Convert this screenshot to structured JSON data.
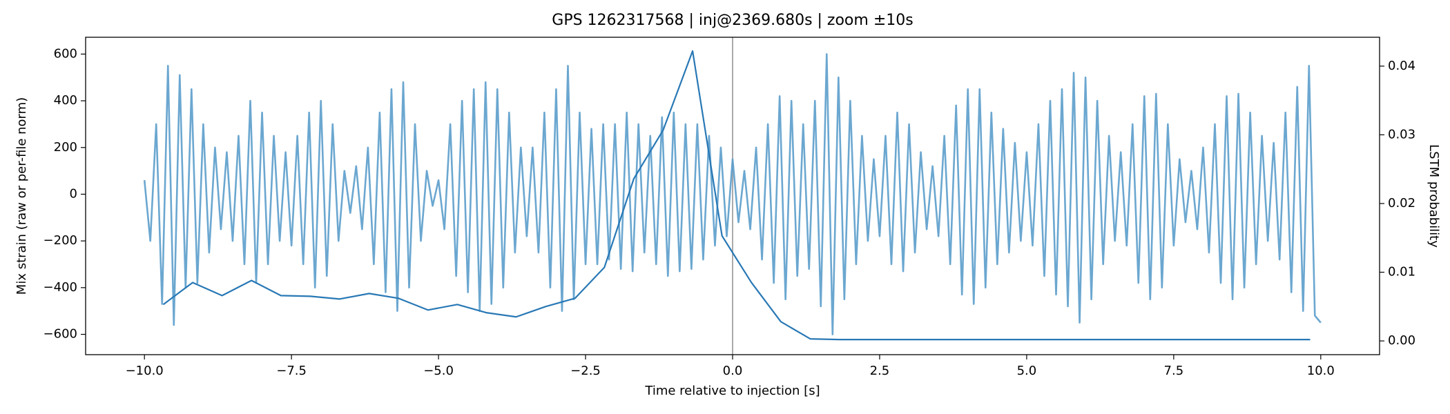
{
  "chart_data": {
    "type": "line",
    "title": "GPS 1262317568 | inj@2369.680s | zoom ±10s",
    "xlabel": "Time relative to injection [s]",
    "ylabel": "Mix strain (raw or per-file norm)",
    "y2label": "LSTM probability",
    "xlim": [
      -11,
      11
    ],
    "ylim": [
      -687,
      672
    ],
    "y2lim": [
      -0.002,
      0.0442
    ],
    "xticks": [
      {
        "value": -10,
        "label": "−10.0"
      },
      {
        "value": -7.5,
        "label": "−7.5"
      },
      {
        "value": -5,
        "label": "−5.0"
      },
      {
        "value": -2.5,
        "label": "−2.5"
      },
      {
        "value": 0,
        "label": "0.0"
      },
      2.5,
      {
        "value": 5,
        "label": "5.0"
      },
      7.5,
      {
        "value": 10,
        "label": "10.0"
      }
    ],
    "yticks": [
      {
        "value": -600,
        "label": "−600"
      },
      {
        "value": -400,
        "label": "−400"
      },
      {
        "value": -200,
        "label": "−200"
      },
      0,
      200,
      400,
      600
    ],
    "y2ticks": [
      {
        "value": 0,
        "label": "0.00"
      },
      0.01,
      0.02,
      0.03,
      0.04
    ],
    "vline_x": 0,
    "series": [
      {
        "name": "strain",
        "color": "#5b9dcb",
        "x": [
          -10,
          -9.9,
          -9.8,
          -9.7,
          -9.6,
          -9.5,
          -9.4,
          -9.3,
          -9.2,
          -9.1,
          -9,
          -8.9,
          -8.8,
          -8.7,
          -8.6,
          -8.5,
          -8.4,
          -8.3,
          -8.2,
          -8.1,
          -8,
          -7.9,
          -7.8,
          -7.7,
          -7.6,
          -7.5,
          -7.4,
          -7.3,
          -7.2,
          -7.1,
          -7,
          -6.9,
          -6.8,
          -6.7,
          -6.6,
          -6.5,
          -6.4,
          -6.3,
          -6.2,
          -6.1,
          -6,
          -5.9,
          -5.8,
          -5.7,
          -5.6,
          -5.5,
          -5.4,
          -5.3,
          -5.2,
          -5.1,
          -5,
          -4.9,
          -4.8,
          -4.7,
          -4.6,
          -4.5,
          -4.4,
          -4.3,
          -4.2,
          -4.1,
          -4,
          -3.9,
          -3.8,
          -3.7,
          -3.6,
          -3.5,
          -3.4,
          -3.3,
          -3.2,
          -3.1,
          -3,
          -2.9,
          -2.8,
          -2.7,
          -2.6,
          -2.5,
          -2.4,
          -2.3,
          -2.2,
          -2.1,
          -2,
          -1.9,
          -1.8,
          -1.7,
          -1.6,
          -1.5,
          -1.4,
          -1.3,
          -1.2,
          -1.1,
          -1,
          -0.9,
          -0.8,
          -0.7,
          -0.6,
          -0.5,
          -0.4,
          -0.3,
          -0.2,
          -0.1,
          0,
          0.1,
          0.2,
          0.3,
          0.4,
          0.5,
          0.6,
          0.7,
          0.8,
          0.9,
          1,
          1.1,
          1.2,
          1.3,
          1.4,
          1.5,
          1.6,
          1.7,
          1.8,
          1.9,
          2,
          2.1,
          2.2,
          2.3,
          2.4,
          2.5,
          2.6,
          2.7,
          2.8,
          2.9,
          3,
          3.1,
          3.2,
          3.3,
          3.4,
          3.5,
          3.6,
          3.7,
          3.8,
          3.9,
          4,
          4.1,
          4.2,
          4.3,
          4.4,
          4.5,
          4.6,
          4.7,
          4.8,
          4.9,
          5,
          5.1,
          5.2,
          5.3,
          5.4,
          5.5,
          5.6,
          5.7,
          5.8,
          5.9,
          6,
          6.1,
          6.2,
          6.3,
          6.4,
          6.5,
          6.6,
          6.7,
          6.8,
          6.9,
          7,
          7.1,
          7.2,
          7.3,
          7.4,
          7.5,
          7.6,
          7.7,
          7.8,
          7.9,
          8,
          8.1,
          8.2,
          8.3,
          8.4,
          8.5,
          8.6,
          8.7,
          8.8,
          8.9,
          9,
          9.1,
          9.2,
          9.3,
          9.4,
          9.5,
          9.6,
          9.7,
          9.8,
          9.9,
          10
        ],
        "values": [
          60,
          -200,
          300,
          -470,
          550,
          -560,
          510,
          -400,
          450,
          -380,
          300,
          -250,
          200,
          -150,
          180,
          -200,
          250,
          -300,
          400,
          -380,
          350,
          -300,
          250,
          -200,
          180,
          -220,
          250,
          -300,
          350,
          -400,
          400,
          -350,
          300,
          -200,
          100,
          -80,
          120,
          -150,
          200,
          -300,
          350,
          -420,
          450,
          -500,
          480,
          -400,
          300,
          -200,
          100,
          -50,
          60,
          -150,
          300,
          -350,
          400,
          -420,
          450,
          -500,
          480,
          -470,
          450,
          -400,
          350,
          -250,
          200,
          -180,
          200,
          -250,
          350,
          -400,
          450,
          -500,
          550,
          -450,
          350,
          -300,
          280,
          -300,
          300,
          -280,
          300,
          -320,
          350,
          -330,
          300,
          -250,
          250,
          -300,
          330,
          -350,
          350,
          -330,
          300,
          -320,
          300,
          -280,
          250,
          -220,
          200,
          -180,
          150,
          -120,
          100,
          -150,
          200,
          -280,
          300,
          -380,
          420,
          -450,
          400,
          -350,
          300,
          -320,
          400,
          -480,
          600,
          -600,
          500,
          -450,
          400,
          -300,
          250,
          -200,
          150,
          -180,
          250,
          -300,
          350,
          -330,
          300,
          -250,
          180,
          -150,
          120,
          -180,
          250,
          -300,
          380,
          -430,
          450,
          -470,
          450,
          -400,
          350,
          -300,
          280,
          -250,
          220,
          -200,
          180,
          -220,
          300,
          -350,
          400,
          -430,
          450,
          -480,
          520,
          -550,
          500,
          -450,
          400,
          -300,
          250,
          -200,
          180,
          -220,
          300,
          -380,
          420,
          -450,
          430,
          -400,
          300,
          -220,
          150,
          -120,
          100,
          -150,
          200,
          -250,
          300,
          -380,
          420,
          -450,
          430,
          -400,
          350,
          -300,
          250,
          -200,
          220,
          -280,
          350,
          -420,
          460,
          -500,
          550,
          -520,
          -550
        ]
      },
      {
        "name": "LSTM probability",
        "color": "#2878b5",
        "axis": "y2",
        "x": [
          -9.68,
          -9.18,
          -8.68,
          -8.18,
          -7.68,
          -7.18,
          -6.68,
          -6.18,
          -5.68,
          -5.18,
          -4.68,
          -4.18,
          -3.68,
          -3.18,
          -2.68,
          -2.18,
          -1.68,
          -1.18,
          -0.68,
          -0.18,
          0.32,
          0.82,
          1.32,
          1.82,
          2.32,
          2.82,
          3.32,
          3.82,
          4.32,
          4.82,
          5.32,
          5.82,
          6.32,
          6.82,
          7.32,
          7.82,
          8.32,
          8.82,
          9.32,
          9.82
        ],
        "values": [
          0.0053,
          0.0085,
          0.0066,
          0.0088,
          0.0066,
          0.0065,
          0.0061,
          0.0069,
          0.0062,
          0.0045,
          0.0053,
          0.0041,
          0.0035,
          0.005,
          0.0062,
          0.0107,
          0.0236,
          0.0307,
          0.0422,
          0.0153,
          0.0085,
          0.0028,
          0.0003,
          0.0002,
          0.0002,
          0.0002,
          0.0002,
          0.0002,
          0.0002,
          0.0002,
          0.0002,
          0.0002,
          0.0002,
          0.0002,
          0.0002,
          0.0002,
          0.0002,
          0.0002,
          0.0002,
          0.0002
        ]
      }
    ]
  }
}
